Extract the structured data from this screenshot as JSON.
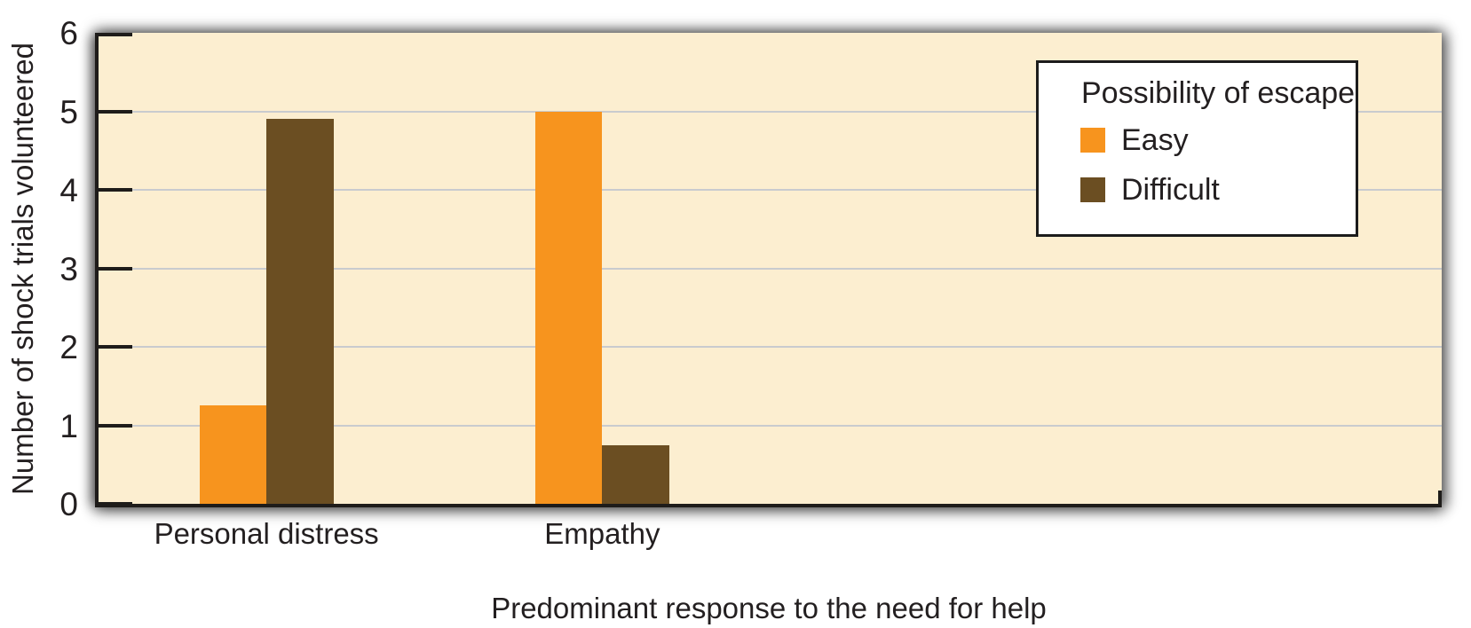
{
  "figure": {
    "background_color": "#FFFFFF",
    "text_color": "#231F20",
    "axis_color": "#1E1C1A"
  },
  "chart_data": {
    "type": "bar",
    "title": "",
    "xlabel": "Predominant response to the need for help",
    "ylabel": "Number of shock trials volunteered",
    "categories": [
      "Personal distress",
      "Empathy"
    ],
    "series": [
      {
        "name": "Easy",
        "color": "#F7941E",
        "values": [
          1.25,
          5.0
        ]
      },
      {
        "name": "Difficult",
        "color": "#6B4E22",
        "values": [
          4.9,
          0.75
        ]
      }
    ],
    "ylim": [
      0,
      6
    ],
    "yticks": [
      "0",
      "1",
      "2",
      "3",
      "4",
      "5",
      "6"
    ],
    "grid": true,
    "gridline_color": "#C9CBCE",
    "plot_background": "#FCEED0",
    "legend": {
      "title": "Possibility of escape",
      "position": "top-right"
    },
    "category_slots": 4
  }
}
